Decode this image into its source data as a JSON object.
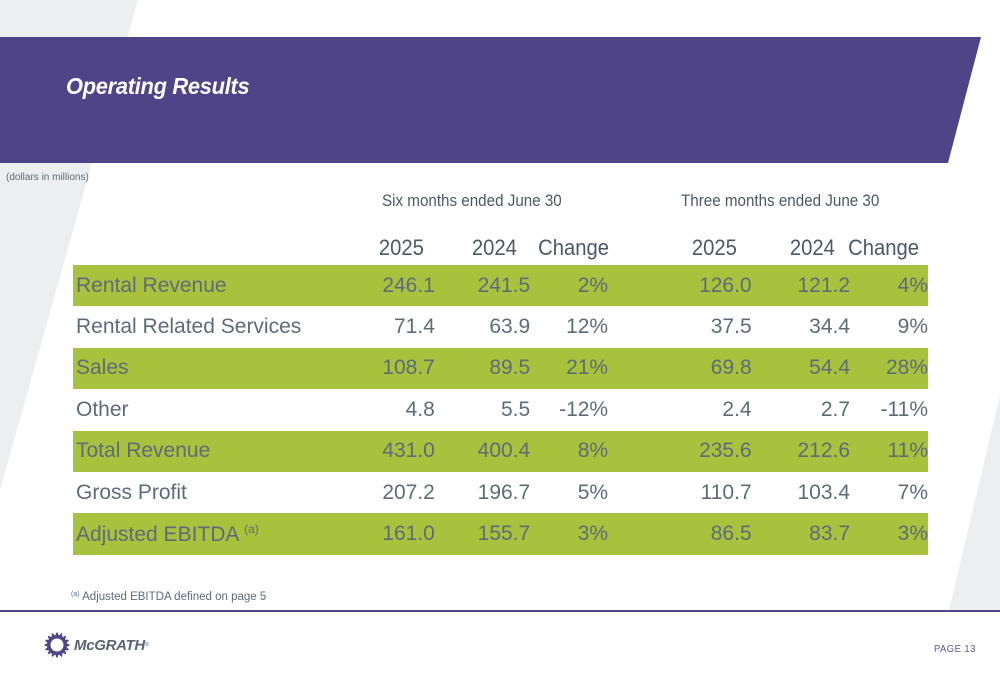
{
  "header": {
    "title": "Operating Results",
    "banner_color": "#4f4488"
  },
  "units_note": "(dollars in millions)",
  "table": {
    "period_headers": [
      "Six months ended June 30",
      "Three months ended June 30"
    ],
    "column_headers": [
      "2025",
      "2024",
      "Change",
      "2025",
      "2024",
      "Change"
    ],
    "highlight_color": "#a8c23e",
    "rows": [
      {
        "label": "Rental Revenue",
        "footnote": "",
        "highlight": true,
        "values": [
          "246.1",
          "241.5",
          "2%",
          "126.0",
          "121.2",
          "4%"
        ]
      },
      {
        "label": "Rental Related Services",
        "footnote": "",
        "highlight": false,
        "values": [
          "71.4",
          "63.9",
          "12%",
          "37.5",
          "34.4",
          "9%"
        ]
      },
      {
        "label": "Sales",
        "footnote": "",
        "highlight": true,
        "values": [
          "108.7",
          "89.5",
          "21%",
          "69.8",
          "54.4",
          "28%"
        ]
      },
      {
        "label": "Other",
        "footnote": "",
        "highlight": false,
        "values": [
          "4.8",
          "5.5",
          "-12%",
          "2.4",
          "2.7",
          "-11%"
        ]
      },
      {
        "label": "Total Revenue",
        "footnote": "",
        "highlight": true,
        "values": [
          "431.0",
          "400.4",
          "8%",
          "235.6",
          "212.6",
          "11%"
        ]
      },
      {
        "label": "Gross Profit",
        "footnote": "",
        "highlight": false,
        "values": [
          "207.2",
          "196.7",
          "5%",
          "110.7",
          "103.4",
          "7%"
        ]
      },
      {
        "label": "Adjusted EBITDA",
        "footnote": "(a)",
        "highlight": true,
        "values": [
          "161.0",
          "155.7",
          "3%",
          "86.5",
          "83.7",
          "3%"
        ]
      }
    ]
  },
  "footnote": {
    "marker": "(a)",
    "text": "Adjusted EBITDA defined on page 5"
  },
  "footer": {
    "logo_text": "McGRATH",
    "logo_icon": "gear-icon",
    "trademark": "®",
    "page_label": "PAGE 13"
  }
}
